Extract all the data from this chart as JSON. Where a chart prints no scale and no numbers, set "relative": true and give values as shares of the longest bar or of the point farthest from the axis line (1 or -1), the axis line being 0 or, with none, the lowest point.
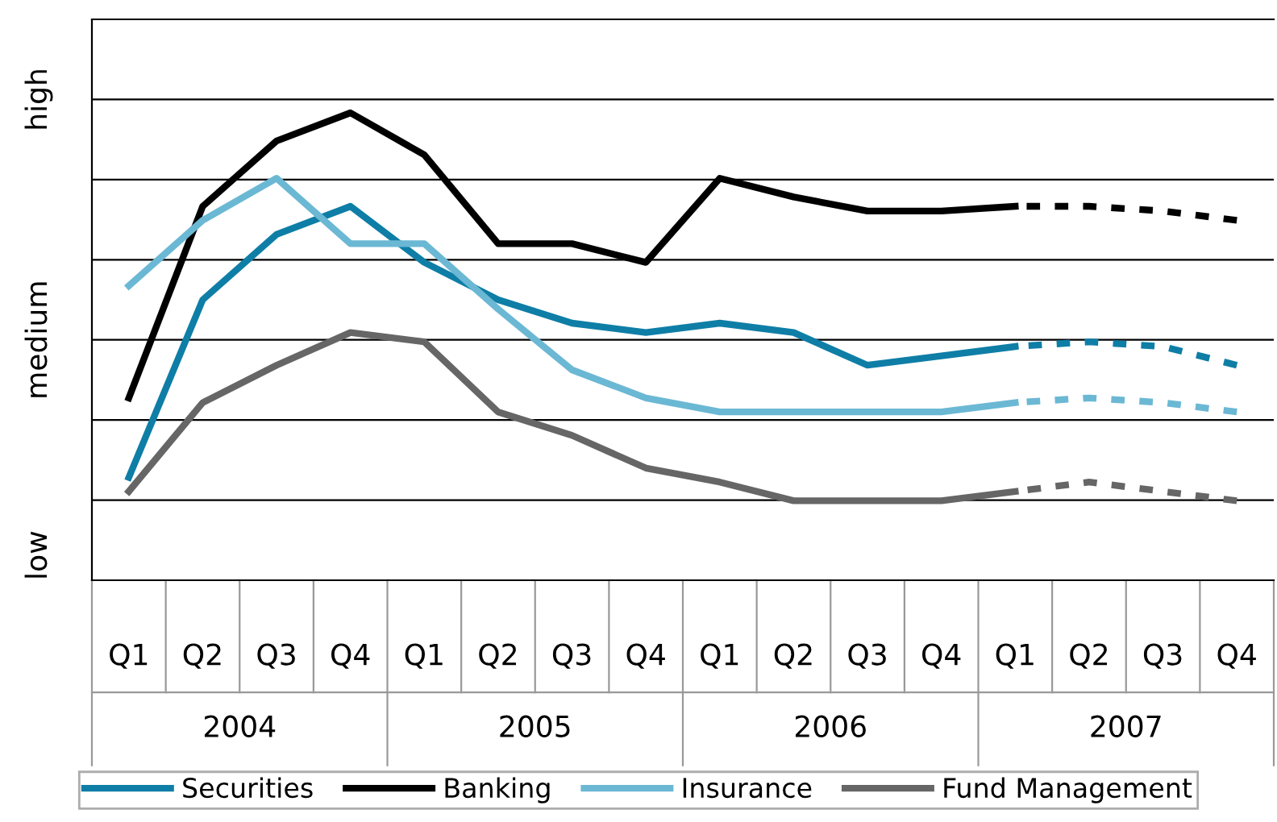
{
  "chart_data": {
    "type": "line",
    "relative": true,
    "categories": [
      "Q1",
      "Q2",
      "Q3",
      "Q4",
      "Q1",
      "Q2",
      "Q3",
      "Q4",
      "Q1",
      "Q2",
      "Q3",
      "Q4",
      "Q1",
      "Q2",
      "Q3",
      "Q4"
    ],
    "annotations": [
      "2004",
      "2005",
      "2006",
      "2007",
      "low",
      "medium",
      "high"
    ],
    "grid": "y",
    "legend": "bottom",
    "marker": "none",
    "series": [
      {
        "name": "Securities",
        "color": "#0e7ea6",
        "line_style": "solid",
        "values": [
          0.22,
          0.6,
          0.74,
          0.8,
          0.68,
          0.6,
          0.55,
          0.53,
          0.55,
          0.53,
          0.46,
          0.48,
          0.5,
          null,
          null,
          null
        ]
      },
      {
        "name": "Banking",
        "color": "#000000",
        "line_style": "solid",
        "values": [
          0.39,
          0.8,
          0.94,
          1,
          0.91,
          0.72,
          0.72,
          0.68,
          0.86,
          0.82,
          0.79,
          0.79,
          0.8,
          null,
          null,
          null
        ]
      },
      {
        "name": "Insurance",
        "color": "#6bb8d4",
        "line_style": "solid",
        "values": [
          0.63,
          0.77,
          0.86,
          0.72,
          0.72,
          0.58,
          0.45,
          0.39,
          0.36,
          0.36,
          0.36,
          0.36,
          0.38,
          null,
          null,
          null
        ]
      },
      {
        "name": "Fund Management",
        "color": "#666666",
        "line_style": "solid",
        "values": [
          0.19,
          0.38,
          0.46,
          0.53,
          0.51,
          0.36,
          0.31,
          0.24,
          0.21,
          0.17,
          0.17,
          0.17,
          0.19,
          null,
          null,
          null
        ]
      },
      {
        "color": "#0e7ea6",
        "line_style": "dashed",
        "values": [
          null,
          null,
          null,
          null,
          null,
          null,
          null,
          null,
          null,
          null,
          null,
          null,
          0.5,
          0.51,
          0.5,
          0.46
        ]
      },
      {
        "color": "#000000",
        "line_style": "dashed",
        "values": [
          null,
          null,
          null,
          null,
          null,
          null,
          null,
          null,
          null,
          null,
          null,
          null,
          0.8,
          0.8,
          0.79,
          0.77
        ]
      },
      {
        "color": "#6bb8d4",
        "line_style": "dashed",
        "values": [
          null,
          null,
          null,
          null,
          null,
          null,
          null,
          null,
          null,
          null,
          null,
          null,
          0.38,
          0.39,
          0.38,
          0.36
        ]
      },
      {
        "color": "#666666",
        "line_style": "dashed",
        "values": [
          null,
          null,
          null,
          null,
          null,
          null,
          null,
          null,
          null,
          null,
          null,
          null,
          0.19,
          0.21,
          0.19,
          0.17
        ]
      }
    ]
  }
}
